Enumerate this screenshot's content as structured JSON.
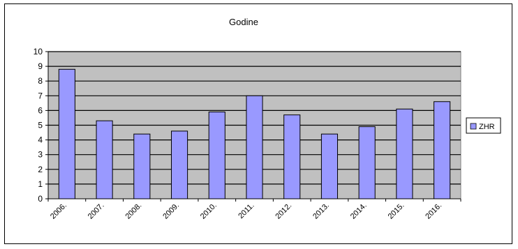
{
  "chart_data": {
    "type": "bar",
    "title": "Godine",
    "xlabel": "",
    "ylabel": "",
    "categories": [
      "2006.",
      "2007.",
      "2008.",
      "2009.",
      "2010.",
      "2011.",
      "2012.",
      "2013.",
      "2014.",
      "2015.",
      "2016."
    ],
    "series": [
      {
        "name": "ZHR",
        "values": [
          8.8,
          5.3,
          4.4,
          4.6,
          5.9,
          7.0,
          5.7,
          4.4,
          4.9,
          6.1,
          6.6
        ]
      }
    ],
    "ylim": [
      0,
      10
    ],
    "yticks": [
      0,
      1,
      2,
      3,
      4,
      5,
      6,
      7,
      8,
      9,
      10
    ],
    "grid": true,
    "legend_position": "right",
    "colors": {
      "plot_background": "#c0c0c0",
      "bar_fill": "#9999ff",
      "bar_stroke": "#000000",
      "grid": "#000000",
      "text": "#000000"
    }
  }
}
